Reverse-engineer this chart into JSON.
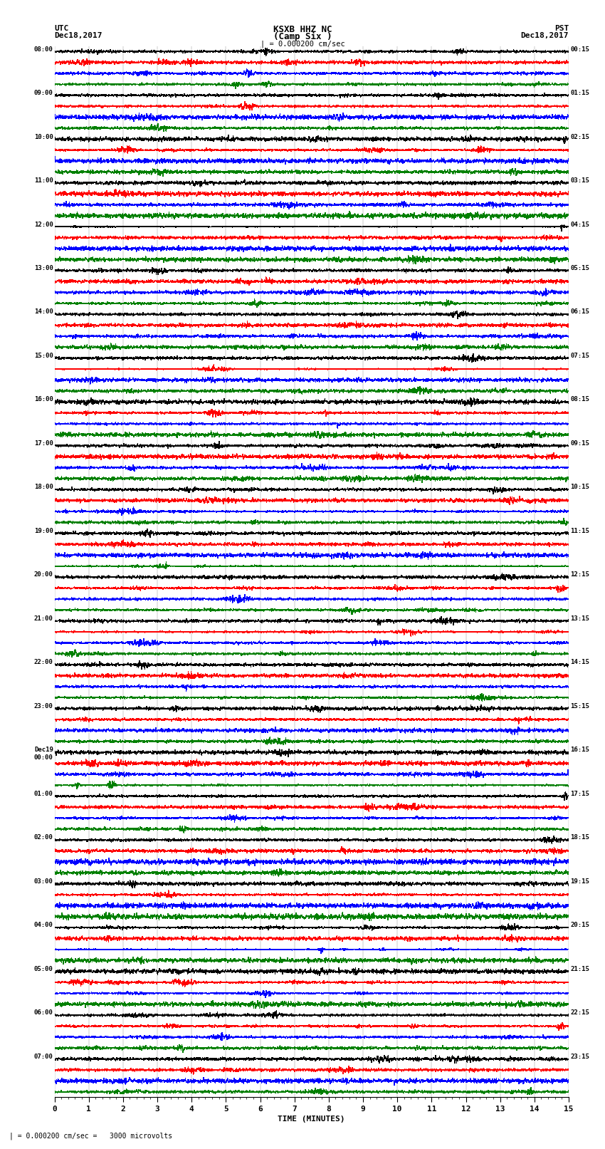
{
  "title_line1": "KSXB HHZ NC",
  "title_line2": "(Camp Six )",
  "scale_label": "| = 0.000200 cm/sec",
  "left_label_top": "UTC",
  "left_label_date": "Dec18,2017",
  "right_label_top": "PST",
  "right_label_date": "Dec18,2017",
  "bottom_label": "TIME (MINUTES)",
  "bottom_note": "| = 0.000200 cm/sec =   3000 microvolts",
  "xlabel_ticks": [
    0,
    1,
    2,
    3,
    4,
    5,
    6,
    7,
    8,
    9,
    10,
    11,
    12,
    13,
    14,
    15
  ],
  "left_times": [
    "08:00",
    "09:00",
    "10:00",
    "11:00",
    "12:00",
    "13:00",
    "14:00",
    "15:00",
    "16:00",
    "17:00",
    "18:00",
    "19:00",
    "20:00",
    "21:00",
    "22:00",
    "23:00",
    "Dec19\n00:00",
    "01:00",
    "02:00",
    "03:00",
    "04:00",
    "05:00",
    "06:00",
    "07:00"
  ],
  "right_times": [
    "00:15",
    "01:15",
    "02:15",
    "03:15",
    "04:15",
    "05:15",
    "06:15",
    "07:15",
    "08:15",
    "09:15",
    "10:15",
    "11:15",
    "12:15",
    "13:15",
    "14:15",
    "15:15",
    "16:15",
    "17:15",
    "18:15",
    "19:15",
    "20:15",
    "21:15",
    "22:15",
    "23:15"
  ],
  "colors": [
    "black",
    "red",
    "blue",
    "green"
  ],
  "bg_color": "white",
  "line_width": 0.4,
  "num_hours": 24,
  "traces_per_hour": 4,
  "num_points": 1800,
  "seed": 42,
  "grid_color": "#888888",
  "grid_linewidth": 0.3,
  "trace_amplitude": 0.38
}
